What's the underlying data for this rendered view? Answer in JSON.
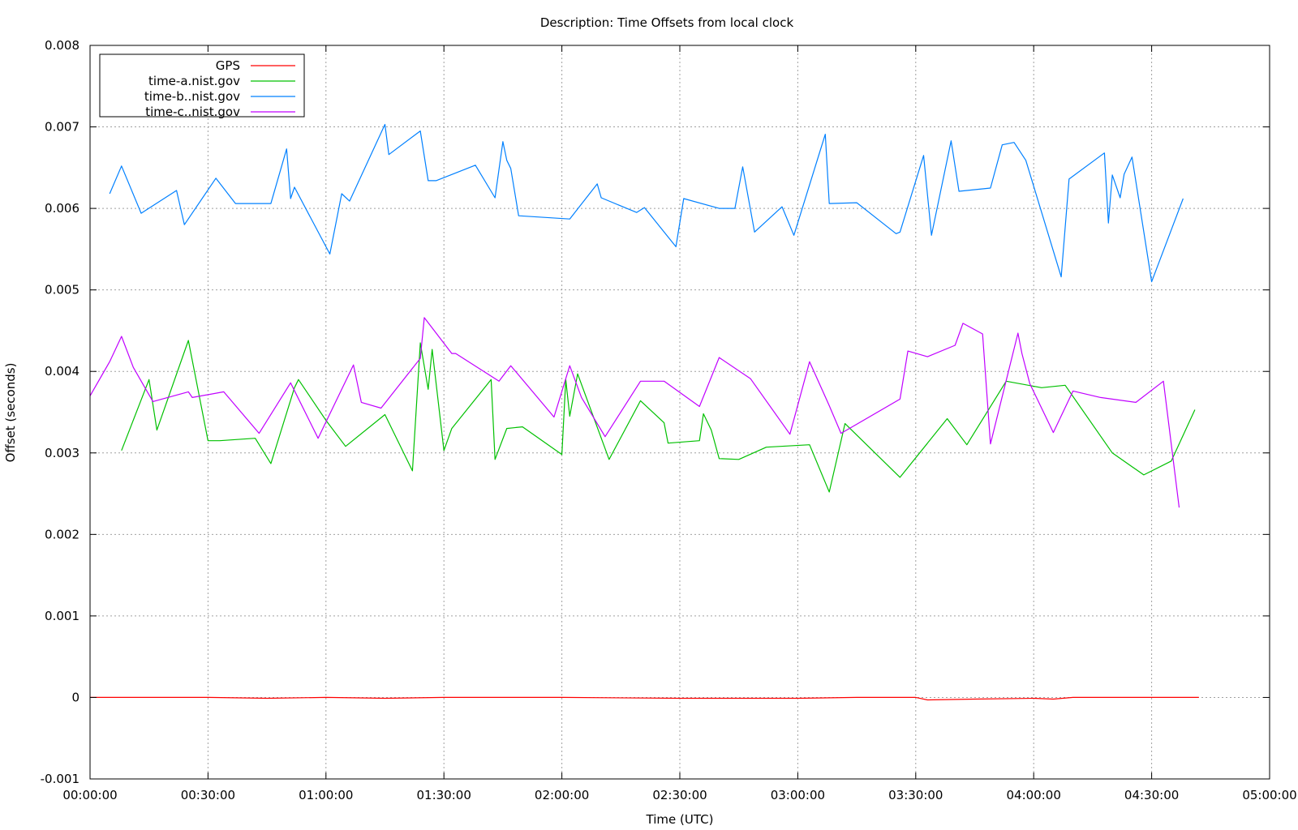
{
  "chart_data": {
    "type": "line",
    "title": "Description: Time Offsets from local clock",
    "xlabel": "Time (UTC)",
    "ylabel": "Offset (seconds)",
    "xlim": [
      "00:00:00",
      "05:00:00"
    ],
    "ylim": [
      -0.001,
      0.008
    ],
    "xticks": [
      "00:00:00",
      "00:30:00",
      "01:00:00",
      "01:30:00",
      "02:00:00",
      "02:30:00",
      "03:00:00",
      "03:30:00",
      "04:00:00",
      "04:30:00",
      "05:00:00"
    ],
    "yticks": [
      "-0.001",
      "0",
      "0.001",
      "0.002",
      "0.003",
      "0.004",
      "0.005",
      "0.006",
      "0.007",
      "0.008"
    ],
    "grid": true,
    "legend_position": "top-left",
    "series": [
      {
        "name": "GPS",
        "color": "#ff0000",
        "x": [
          "00:00:00",
          "00:30:00",
          "00:45:00",
          "01:00:00",
          "01:15:00",
          "01:30:00",
          "02:00:00",
          "02:30:00",
          "03:00:00",
          "03:15:00",
          "03:30:00",
          "03:33:00",
          "03:45:00",
          "04:00:00",
          "04:05:00",
          "04:10:00",
          "04:30:00",
          "04:42:00"
        ],
        "values": [
          0.0,
          0.0,
          -1e-05,
          0.0,
          -1e-05,
          0.0,
          0.0,
          -1e-05,
          -1e-05,
          0.0,
          0.0,
          -3e-05,
          -2e-05,
          -1e-05,
          -2e-05,
          0.0,
          0.0,
          0.0
        ]
      },
      {
        "name": "time-a.nist.gov",
        "color": "#00c000",
        "x": [
          "00:08:00",
          "00:15:00",
          "00:17:00",
          "00:25:00",
          "00:30:00",
          "00:33:00",
          "00:42:00",
          "00:46:00",
          "00:52:00",
          "00:53:00",
          "01:00:00",
          "01:05:00",
          "01:15:00",
          "01:22:00",
          "01:24:00",
          "01:26:00",
          "01:27:00",
          "01:30:00",
          "01:32:00",
          "01:42:00",
          "01:43:00",
          "01:46:00",
          "01:50:00",
          "02:00:00",
          "02:01:00",
          "02:02:00",
          "02:04:00",
          "02:12:00",
          "02:20:00",
          "02:26:00",
          "02:27:00",
          "02:35:00",
          "02:36:00",
          "02:38:00",
          "02:40:00",
          "02:45:00",
          "02:52:00",
          "03:03:00",
          "03:08:00",
          "03:12:00",
          "03:26:00",
          "03:38:00",
          "03:43:00",
          "03:53:00",
          "04:02:00",
          "04:08:00",
          "04:20:00",
          "04:28:00",
          "04:35:00",
          "04:41:00"
        ],
        "values": [
          0.00303,
          0.0039,
          0.00328,
          0.00438,
          0.00315,
          0.00315,
          0.00318,
          0.00287,
          0.0038,
          0.0039,
          0.0034,
          0.00308,
          0.00347,
          0.00278,
          0.00435,
          0.00378,
          0.00427,
          0.00303,
          0.0033,
          0.0039,
          0.00292,
          0.0033,
          0.00332,
          0.00298,
          0.0039,
          0.00345,
          0.00397,
          0.00292,
          0.00364,
          0.00337,
          0.00312,
          0.00315,
          0.00348,
          0.00328,
          0.00293,
          0.00292,
          0.00307,
          0.0031,
          0.00252,
          0.00336,
          0.0027,
          0.00342,
          0.0031,
          0.00388,
          0.0038,
          0.00383,
          0.003,
          0.00273,
          0.0029,
          0.00353
        ]
      },
      {
        "name": "time-b..nist.gov",
        "color": "#0080ff",
        "x": [
          "00:05:00",
          "00:08:00",
          "00:13:00",
          "00:22:00",
          "00:24:00",
          "00:32:00",
          "00:37:00",
          "00:46:00",
          "00:50:00",
          "00:51:00",
          "00:52:00",
          "01:01:00",
          "01:04:00",
          "01:06:00",
          "01:15:00",
          "01:16:00",
          "01:24:00",
          "01:26:00",
          "01:28:00",
          "01:38:00",
          "01:43:00",
          "01:45:00",
          "01:46:00",
          "01:47:00",
          "01:49:00",
          "02:02:00",
          "02:09:00",
          "02:10:00",
          "02:19:00",
          "02:21:00",
          "02:29:00",
          "02:31:00",
          "02:40:00",
          "02:44:00",
          "02:46:00",
          "02:49:00",
          "02:56:00",
          "02:59:00",
          "03:07:00",
          "03:08:00",
          "03:15:00",
          "03:25:00",
          "03:26:00",
          "03:32:00",
          "03:34:00",
          "03:39:00",
          "03:41:00",
          "03:49:00",
          "03:52:00",
          "03:55:00",
          "03:58:00",
          "04:07:00",
          "04:09:00",
          "04:18:00",
          "04:19:00",
          "04:20:00",
          "04:22:00",
          "04:23:00",
          "04:25:00",
          "04:30:00",
          "04:38:00"
        ],
        "values": [
          0.00618,
          0.00652,
          0.00594,
          0.00622,
          0.0058,
          0.00637,
          0.00606,
          0.00606,
          0.00673,
          0.00612,
          0.00626,
          0.00544,
          0.00618,
          0.00609,
          0.00703,
          0.00666,
          0.00695,
          0.00634,
          0.00634,
          0.00653,
          0.00613,
          0.00682,
          0.00659,
          0.00649,
          0.00591,
          0.00587,
          0.0063,
          0.00613,
          0.00595,
          0.00601,
          0.00553,
          0.00612,
          0.006,
          0.006,
          0.00651,
          0.00571,
          0.00602,
          0.00567,
          0.00691,
          0.00606,
          0.00607,
          0.00569,
          0.00571,
          0.00665,
          0.00567,
          0.00683,
          0.00621,
          0.00625,
          0.00678,
          0.00681,
          0.00659,
          0.00516,
          0.00636,
          0.00668,
          0.00582,
          0.00641,
          0.00613,
          0.00642,
          0.00663,
          0.0051,
          0.00612
        ]
      },
      {
        "name": "time-c..nist.gov",
        "color": "#c000ff",
        "x": [
          "00:00:00",
          "00:05:00",
          "00:08:00",
          "00:11:00",
          "00:16:00",
          "00:25:00",
          "00:26:00",
          "00:34:00",
          "00:43:00",
          "00:51:00",
          "00:58:00",
          "01:07:00",
          "01:09:00",
          "01:14:00",
          "01:24:00",
          "01:25:00",
          "01:32:00",
          "01:33:00",
          "01:44:00",
          "01:47:00",
          "01:58:00",
          "02:02:00",
          "02:05:00",
          "02:11:00",
          "02:20:00",
          "02:26:00",
          "02:35:00",
          "02:40:00",
          "02:48:00",
          "02:58:00",
          "03:03:00",
          "03:08:00",
          "03:11:00",
          "03:26:00",
          "03:28:00",
          "03:33:00",
          "03:40:00",
          "03:42:00",
          "03:47:00",
          "03:49:00",
          "03:56:00",
          "03:57:00",
          "03:59:00",
          "04:05:00",
          "04:10:00",
          "04:17:00",
          "04:26:00",
          "04:33:00",
          "04:37:00"
        ],
        "values": [
          0.0037,
          0.00412,
          0.00443,
          0.00405,
          0.00363,
          0.00375,
          0.00368,
          0.00375,
          0.00324,
          0.00386,
          0.00318,
          0.00408,
          0.00362,
          0.00355,
          0.00416,
          0.00466,
          0.00422,
          0.00422,
          0.00388,
          0.00407,
          0.00344,
          0.00407,
          0.00368,
          0.0032,
          0.00388,
          0.00388,
          0.00357,
          0.00417,
          0.00391,
          0.00323,
          0.00412,
          0.00358,
          0.00324,
          0.00366,
          0.00425,
          0.00418,
          0.00432,
          0.00459,
          0.00446,
          0.00311,
          0.00447,
          0.00422,
          0.00385,
          0.00325,
          0.00376,
          0.00368,
          0.00362,
          0.00388,
          0.00233
        ]
      }
    ]
  }
}
